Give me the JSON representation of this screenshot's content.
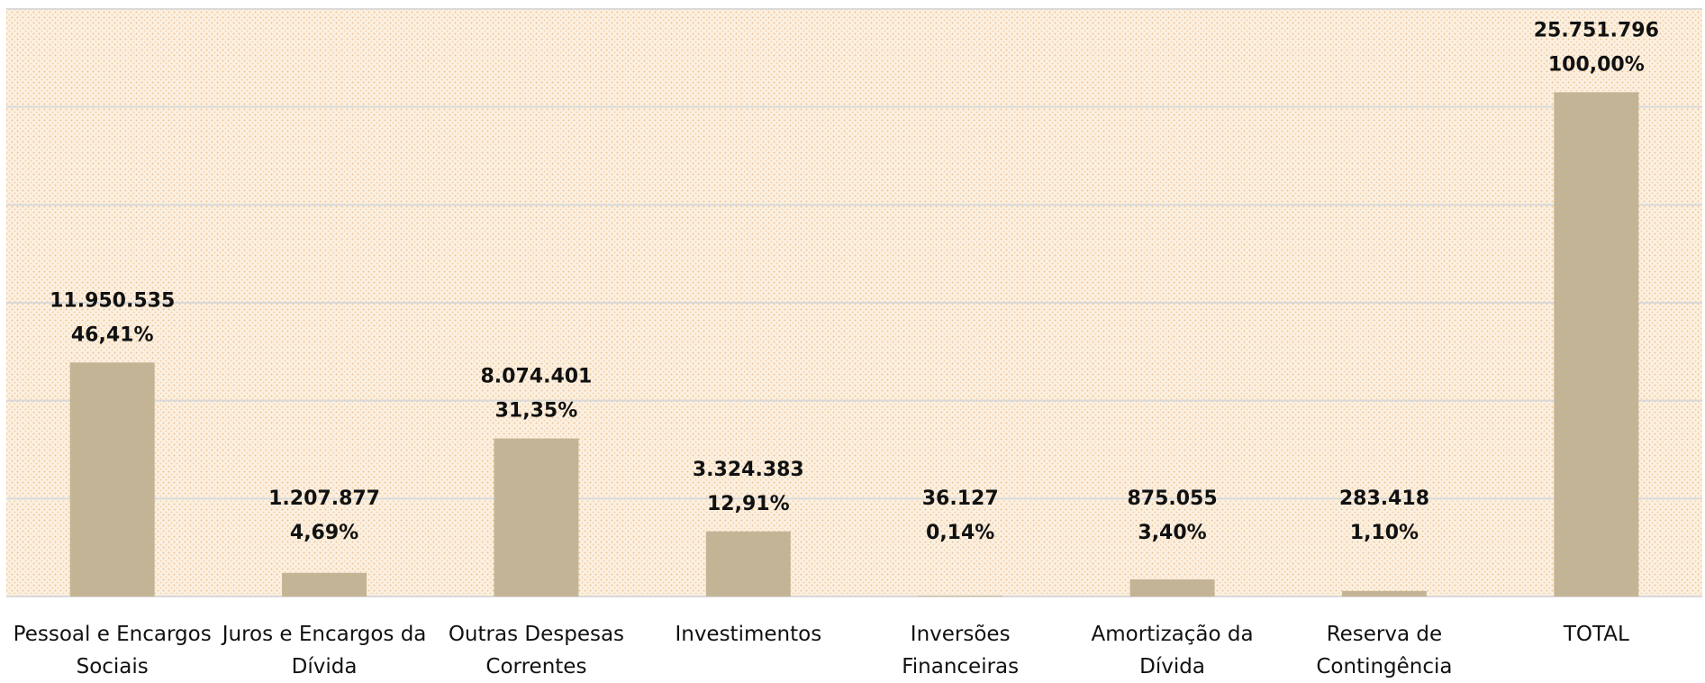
{
  "chart_data": {
    "type": "bar",
    "categories": [
      "Pessoal e Encargos Sociais",
      "Juros e Encargos da Dívida",
      "Outras Despesas Correntes",
      "Investimentos",
      "Inversões Financeiras",
      "Amortização da Dívida",
      "Reserva de Contingência",
      "TOTAL"
    ],
    "values": [
      11950535,
      1207877,
      8074401,
      3324383,
      36127,
      875055,
      283418,
      25751796
    ],
    "value_labels": [
      "11.950.535",
      "1.207.877",
      "8.074.401",
      "3.324.383",
      "36.127",
      "875.055",
      "283.418",
      "25.751.796"
    ],
    "percent_labels": [
      "46,41%",
      "4,69%",
      "31,35%",
      "12,91%",
      "0,14%",
      "3,40%",
      "1,10%",
      "100,00%"
    ],
    "color": "#c4b496",
    "ylim": [
      0,
      30000000
    ],
    "yticks": [
      0,
      5000000,
      10000000,
      15000000,
      20000000,
      25000000,
      30000000
    ],
    "grid": true
  }
}
